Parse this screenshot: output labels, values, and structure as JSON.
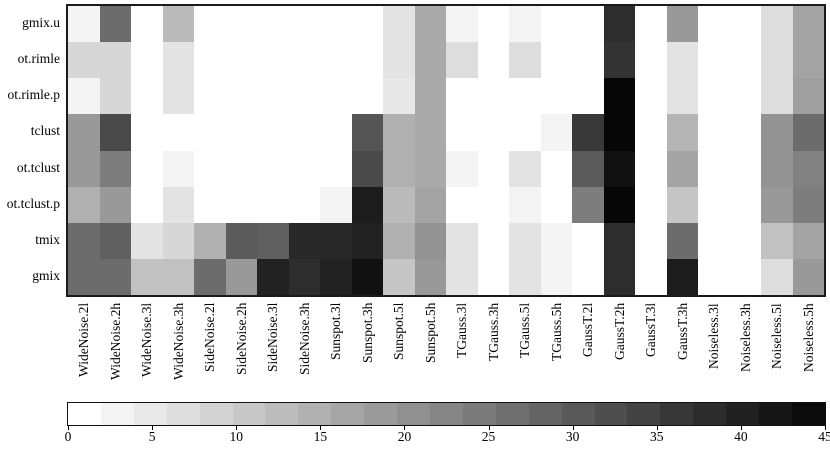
{
  "chart_data": {
    "type": "heatmap",
    "title": "",
    "rows": [
      "gmix.u",
      "ot.rimle",
      "ot.rimle.p",
      "tclust",
      "ot.tclust",
      "ot.tclust.p",
      "tmix",
      "gmix"
    ],
    "columns": [
      "WideNoise.2l",
      "WideNoise.2h",
      "WideNoise.3l",
      "WideNoise.3h",
      "SideNoise.2l",
      "SideNoise.2h",
      "SideNoise.3l",
      "SideNoise.3h",
      "Sunspot.3l",
      "Sunspot.3h",
      "Sunspot.5l",
      "Sunspot.5h",
      "TGauss.3l",
      "TGauss.3h",
      "TGauss.5l",
      "TGauss.5h",
      "GaussT.2l",
      "GaussT.2h",
      "GaussT.3l",
      "GaussT.3h",
      "Noiseless.3l",
      "Noiseless.3h",
      "Noiseless.5l",
      "Noiseless.5h"
    ],
    "values": [
      [
        2,
        26,
        0,
        12,
        0,
        0,
        0,
        0,
        0,
        0,
        5,
        15,
        2,
        0,
        2,
        0,
        0,
        37,
        0,
        18,
        0,
        0,
        6,
        16
      ],
      [
        7,
        7,
        0,
        5,
        0,
        0,
        0,
        0,
        0,
        0,
        5,
        15,
        6,
        0,
        6,
        0,
        0,
        36,
        0,
        5,
        0,
        0,
        6,
        16
      ],
      [
        2,
        7,
        0,
        5,
        0,
        0,
        0,
        0,
        0,
        0,
        4,
        15,
        0,
        0,
        0,
        0,
        0,
        44,
        0,
        5,
        0,
        0,
        6,
        17
      ],
      [
        18,
        32,
        0,
        0,
        0,
        0,
        0,
        0,
        0,
        30,
        14,
        15,
        0,
        0,
        0,
        2,
        35,
        44,
        0,
        13,
        0,
        0,
        19,
        26
      ],
      [
        18,
        23,
        0,
        2,
        0,
        0,
        0,
        0,
        0,
        32,
        14,
        15,
        2,
        0,
        5,
        0,
        29,
        42,
        0,
        16,
        0,
        0,
        19,
        22
      ],
      [
        14,
        18,
        0,
        5,
        0,
        0,
        0,
        0,
        2,
        40,
        12,
        16,
        0,
        0,
        2,
        0,
        23,
        44,
        0,
        10,
        0,
        0,
        18,
        23
      ],
      [
        26,
        28,
        5,
        7,
        14,
        29,
        28,
        38,
        38,
        39,
        14,
        19,
        5,
        0,
        5,
        2,
        0,
        37,
        0,
        26,
        0,
        0,
        11,
        16
      ],
      [
        26,
        26,
        11,
        11,
        26,
        18,
        39,
        37,
        39,
        42,
        10,
        18,
        5,
        0,
        5,
        2,
        0,
        37,
        0,
        40,
        0,
        0,
        6,
        18
      ]
    ],
    "value_range": [
      0,
      45
    ],
    "xlabel": "",
    "ylabel": "",
    "grid": false,
    "legend_position": "bottom-colorbar",
    "colorbar": {
      "orientation": "horizontal",
      "min": 0,
      "max": 45,
      "segments": 23,
      "ticks": [
        0,
        5,
        10,
        15,
        20,
        25,
        30,
        35,
        40,
        45
      ],
      "tick_labels": [
        "0",
        "5",
        "10",
        "15",
        "20",
        "25",
        "30",
        "35",
        "40",
        "45"
      ]
    }
  },
  "colors": {
    "cell_min": "#ffffff",
    "cell_max": "#000000",
    "plot_border": "#1b1b1b",
    "background": "#ffffff"
  }
}
